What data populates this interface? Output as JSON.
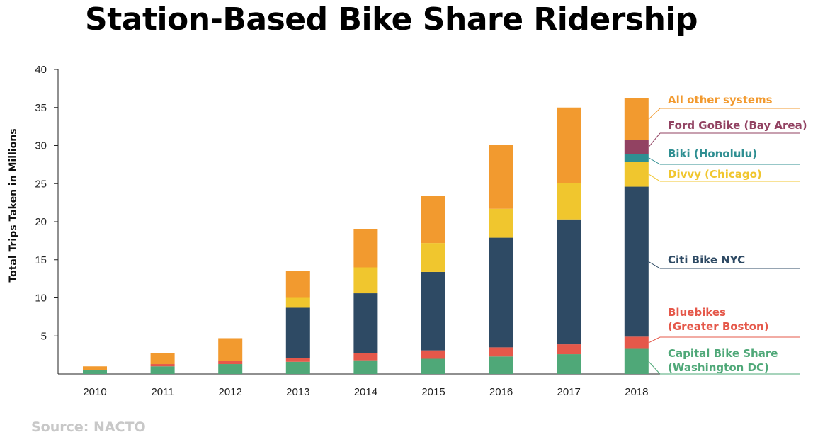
{
  "chart_data": {
    "type": "bar",
    "stacked": true,
    "title": "Station-Based Bike Share Ridership",
    "ylabel": "Total Trips Taken in Millions",
    "xlabel": "",
    "ylim": [
      0,
      40
    ],
    "yticks": [
      5,
      10,
      15,
      20,
      25,
      30,
      35,
      40
    ],
    "grid": false,
    "legend_position": "right",
    "categories": [
      "2010",
      "2011",
      "2012",
      "2013",
      "2014",
      "2015",
      "2016",
      "2017",
      "2018"
    ],
    "series": [
      {
        "name": "Capital Bike Share",
        "legend_lines": [
          "Capital Bike Share",
          "(Washington DC)"
        ],
        "color": "#4fa878",
        "values": [
          0.5,
          1.0,
          1.3,
          1.6,
          1.8,
          2.0,
          2.3,
          2.6,
          3.3
        ]
      },
      {
        "name": "Bluebikes",
        "legend_lines": [
          "Bluebikes",
          "(Greater Boston)"
        ],
        "color": "#e5584a",
        "values": [
          0,
          0.3,
          0.4,
          0.5,
          0.9,
          1.1,
          1.2,
          1.3,
          1.6
        ]
      },
      {
        "name": "Citi Bike NYC",
        "legend_lines": [
          "Citi Bike NYC"
        ],
        "color": "#2e4a64",
        "values": [
          0,
          0,
          0,
          6.6,
          7.9,
          10.3,
          14.4,
          16.4,
          19.7
        ]
      },
      {
        "name": "Divvy (Chicago)",
        "legend_lines": [
          "Divvy (Chicago)"
        ],
        "color": "#f0c62e",
        "values": [
          0,
          0,
          0,
          1.3,
          3.4,
          3.8,
          3.8,
          4.8,
          3.3
        ]
      },
      {
        "name": "Biki (Honolulu)",
        "legend_lines": [
          "Biki (Honolulu)"
        ],
        "color": "#2f8f92",
        "values": [
          0,
          0,
          0,
          0,
          0,
          0,
          0,
          0,
          1.0
        ]
      },
      {
        "name": "Ford GoBike (Bay Area)",
        "legend_lines": [
          "Ford GoBike (Bay Area)"
        ],
        "color": "#924262",
        "values": [
          0,
          0,
          0,
          0,
          0,
          0,
          0,
          0,
          1.8
        ]
      },
      {
        "name": "All other systems",
        "legend_lines": [
          "All other systems"
        ],
        "color": "#f29a2f",
        "values": [
          0.5,
          1.4,
          3.0,
          3.5,
          5.0,
          6.2,
          8.4,
          9.9,
          5.5
        ]
      }
    ]
  },
  "source": "Source: NACTO"
}
